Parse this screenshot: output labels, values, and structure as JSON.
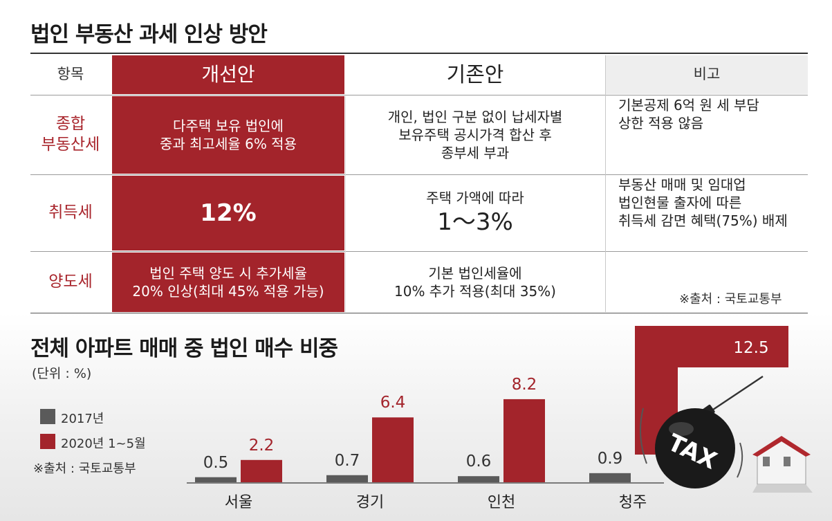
{
  "table": {
    "title": "법인 부동산 과세 인상 방안",
    "headers": [
      "항목",
      "개선안",
      "기존안",
      "비고"
    ],
    "rows": [
      {
        "label": [
          "종합",
          "부동산세"
        ],
        "proposal": [
          "다주택 보유 법인에",
          "중과 최고세율 6% 적용"
        ],
        "existing": [
          "개인, 법인 구분 없이 납세자별",
          "보유주택 공시가격 합산 후",
          "종부세 부과"
        ],
        "note": [
          "기본공제 6억 원 세 부담",
          "상한 적용 않음"
        ]
      },
      {
        "label": [
          "취득세"
        ],
        "proposal": [
          "12%"
        ],
        "existing": [
          "주택 가액에 따라",
          "1～3%"
        ],
        "note": [
          "부동산 매매 및 임대업",
          "법인현물 출자에 따른",
          "취득세 감면 혜택(75%) 배제"
        ]
      },
      {
        "label": [
          "양도세"
        ],
        "proposal": [
          "법인 주택 양도 시 추가세율",
          "20% 인상(최대 45% 적용 가능)"
        ],
        "existing": [
          "기본 법인세율에",
          "10% 추가 적용(최대 35%)"
        ],
        "note": []
      }
    ],
    "source": "※출처 : 국토교통부"
  },
  "chart_title": "전체 아파트 매매 중 법인 매수 비중",
  "unit": "(단위 : %)",
  "chart_source": "※출처 : 국토교통부",
  "illustration_text": "TAX",
  "chart_data": {
    "type": "bar",
    "categories": [
      "서울",
      "경기",
      "인천",
      "청주"
    ],
    "series": [
      {
        "name": "2017년",
        "values": [
          0.5,
          0.7,
          0.6,
          0.9
        ],
        "color": "#5a5a5a"
      },
      {
        "name": "2020년 1~5월",
        "values": [
          2.2,
          6.4,
          8.2,
          12.5
        ],
        "color": "#a3242b"
      }
    ],
    "ylim": [
      0,
      14
    ],
    "grid": false,
    "legend": "left"
  },
  "colors": {
    "accent_red": "#a3242b",
    "dark_gray": "#5a5a5a"
  }
}
